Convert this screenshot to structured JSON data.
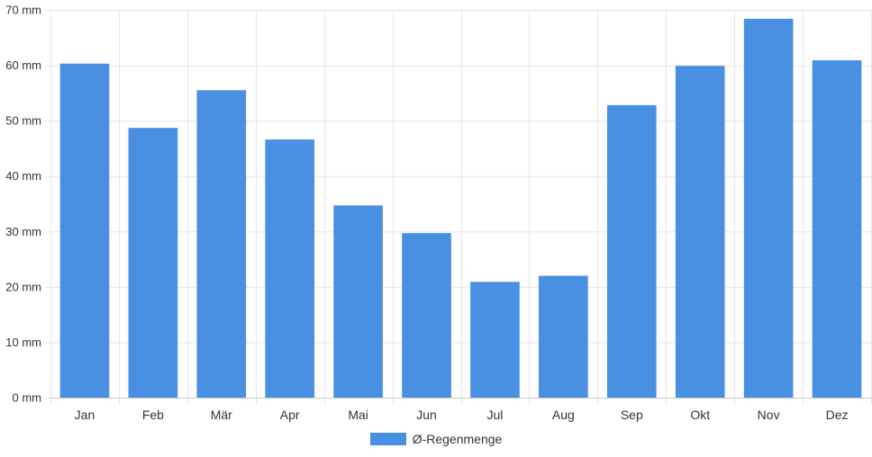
{
  "chart_data": {
    "type": "bar",
    "categories": [
      "Jan",
      "Feb",
      "Mär",
      "Apr",
      "Mai",
      "Jun",
      "Jul",
      "Aug",
      "Sep",
      "Okt",
      "Nov",
      "Dez"
    ],
    "series": [
      {
        "name": "Ø-Regenmenge",
        "color": "#4a90e2",
        "values": [
          60.3,
          48.7,
          55.5,
          46.6,
          34.7,
          29.7,
          20.9,
          22.0,
          52.8,
          59.9,
          68.4,
          60.9
        ]
      }
    ],
    "ylim": [
      0,
      70
    ],
    "yticks": [
      0,
      10,
      20,
      30,
      40,
      50,
      60,
      70
    ],
    "y_unit": "mm",
    "grid": true,
    "legend_position": "bottom"
  }
}
